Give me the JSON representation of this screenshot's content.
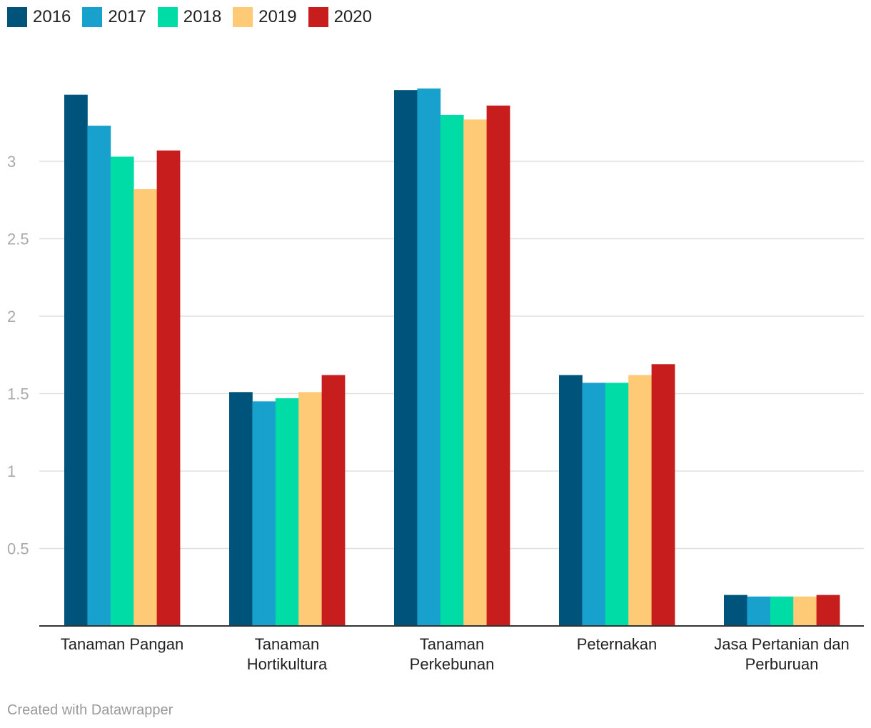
{
  "chart_data": {
    "type": "bar",
    "title": "",
    "xlabel": "",
    "ylabel": "",
    "ylim": [
      0,
      3.5
    ],
    "yticks": [
      "0.5",
      "1",
      "1.5",
      "2",
      "2.5",
      "3"
    ],
    "categories": [
      [
        "Tanaman Pangan"
      ],
      [
        "Tanaman",
        "Hortikultura"
      ],
      [
        "Tanaman",
        "Perkebunan"
      ],
      [
        "Peternakan"
      ],
      [
        "Jasa Pertanian dan",
        "Perburuan"
      ]
    ],
    "series": [
      {
        "name": "2016",
        "color": "#00537a",
        "values": [
          3.43,
          1.51,
          3.46,
          1.62,
          0.2
        ]
      },
      {
        "name": "2017",
        "color": "#18a1cd",
        "values": [
          3.23,
          1.45,
          3.47,
          1.57,
          0.19
        ]
      },
      {
        "name": "2018",
        "color": "#00dca6",
        "values": [
          3.03,
          1.47,
          3.3,
          1.57,
          0.19
        ]
      },
      {
        "name": "2019",
        "color": "#ffca76",
        "values": [
          2.82,
          1.51,
          3.27,
          1.62,
          0.19
        ]
      },
      {
        "name": "2020",
        "color": "#c71e1d",
        "values": [
          3.07,
          1.62,
          3.36,
          1.69,
          0.2
        ]
      }
    ]
  },
  "footer": {
    "credit": "Created with Datawrapper"
  }
}
